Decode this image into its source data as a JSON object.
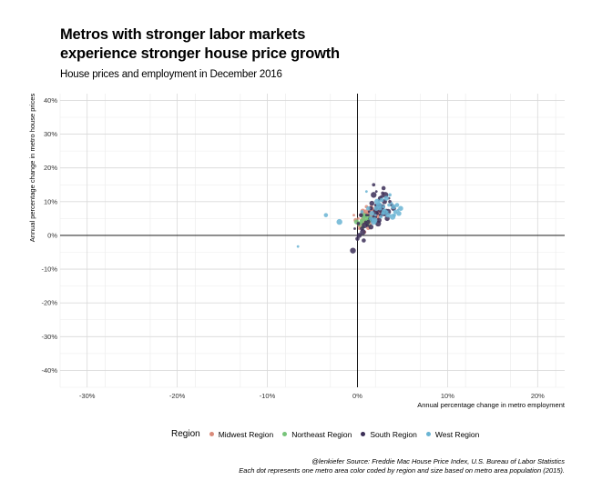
{
  "header": {
    "title_line1": "Metros with stronger labor markets",
    "title_line2": "experience stronger house price growth",
    "subtitle": "House prices and employment in December 2016"
  },
  "caption": {
    "line1": "@lenkiefer Source: Freddie Mac House Price Index, U.S. Bureau of Labor Statistics",
    "line2": "Each dot represents one metro area color coded by region and size based on metro area population (2015)."
  },
  "legend": {
    "title": "Region",
    "items": [
      {
        "label": "Midwest Region",
        "color": "#d98b7a"
      },
      {
        "label": "Northeast Region",
        "color": "#77c47a"
      },
      {
        "label": "South Region",
        "color": "#3b2e57"
      },
      {
        "label": "West Region",
        "color": "#6ab4d3"
      }
    ]
  },
  "chart_data": {
    "type": "scatter",
    "title": "Metros with stronger labor markets experience stronger house price growth",
    "subtitle": "House prices and employment in December 2016",
    "xlabel": "Annual percentage change in metro employment",
    "ylabel": "Annual percentage change in metro house prices",
    "xlim": [
      -0.33,
      0.23
    ],
    "ylim": [
      -0.45,
      0.42
    ],
    "x_ticks": [
      -0.3,
      -0.2,
      -0.1,
      0,
      0.1,
      0.2
    ],
    "x_tick_labels": [
      "-30%",
      "-20%",
      "-10%",
      "0%",
      "10%",
      "20%"
    ],
    "y_ticks": [
      -0.4,
      -0.3,
      -0.2,
      -0.1,
      0,
      0.1,
      0.2,
      0.3,
      0.4
    ],
    "y_tick_labels": [
      "-40%",
      "-30%",
      "-20%",
      "-10%",
      "0%",
      "10%",
      "20%",
      "30%",
      "40%"
    ],
    "grid": true,
    "legend_position": "bottom",
    "series": [
      {
        "name": "Midwest Region",
        "color": "#d98b7a",
        "x": [
          0.001,
          0.004,
          0.006,
          0.008,
          0.01,
          0.012,
          0.014,
          0.003,
          0.009,
          0.016,
          0.018,
          0.02,
          0.007,
          0.011,
          0.013,
          0.005,
          -0.002,
          0.015,
          0.017,
          0.022,
          0.002,
          0.019,
          0.024,
          0.01,
          0.006,
          -0.004,
          0.012,
          0.021,
          0.008,
          0.014
        ],
        "y": [
          0.05,
          0.06,
          0.045,
          0.055,
          0.07,
          0.048,
          0.058,
          0.03,
          0.065,
          0.062,
          0.052,
          0.075,
          0.04,
          0.035,
          0.068,
          0.025,
          0.045,
          0.08,
          0.055,
          0.06,
          0.02,
          0.042,
          0.07,
          0.085,
          0.072,
          0.06,
          0.022,
          0.05,
          0.01,
          0.038
        ]
      },
      {
        "name": "Northeast Region",
        "color": "#77c47a",
        "x": [
          0.002,
          0.005,
          0.008,
          0.01,
          0.012,
          0.004,
          0.006,
          0.014,
          0.009,
          0.011,
          0.016,
          0.003,
          0.007,
          0.013,
          -0.001,
          0.018
        ],
        "y": [
          0.03,
          0.04,
          0.05,
          0.035,
          0.055,
          0.045,
          0.025,
          0.048,
          0.06,
          0.042,
          0.052,
          0.036,
          0.058,
          0.03,
          0.04,
          0.046
        ]
      },
      {
        "name": "South Region",
        "color": "#3b2e57",
        "x": [
          0.01,
          0.015,
          0.02,
          0.025,
          0.03,
          0.035,
          0.012,
          0.018,
          0.022,
          0.028,
          0.032,
          0.005,
          0.008,
          0.014,
          0.016,
          0.024,
          0.026,
          0.034,
          0.038,
          0.002,
          -0.003,
          0.0,
          0.006,
          0.011,
          0.019,
          0.021,
          0.029,
          0.031,
          0.036,
          0.04,
          0.013,
          0.017,
          0.023,
          0.027,
          0.033,
          0.009,
          0.004,
          -0.005,
          0.001,
          0.015,
          0.02,
          0.025,
          0.03,
          0.018,
          0.022,
          0.012,
          0.007,
          0.026,
          0.028,
          0.024
        ],
        "y": [
          0.06,
          0.08,
          0.07,
          0.09,
          0.1,
          0.11,
          0.04,
          0.12,
          0.065,
          0.085,
          0.075,
          0.02,
          0.03,
          0.05,
          0.095,
          0.105,
          0.06,
          0.07,
          0.09,
          0.0,
          0.02,
          -0.01,
          0.01,
          0.03,
          0.055,
          0.13,
          0.14,
          0.12,
          0.1,
          0.08,
          0.07,
          0.045,
          0.035,
          0.115,
          0.05,
          0.04,
          0.06,
          -0.045,
          0.035,
          0.025,
          0.09,
          0.11,
          0.065,
          0.15,
          0.085,
          0.06,
          -0.015,
          0.075,
          0.125,
          0.045
        ]
      },
      {
        "name": "West Region",
        "color": "#6ab4d3",
        "x": [
          0.02,
          0.025,
          0.03,
          0.035,
          0.04,
          0.045,
          0.015,
          0.022,
          0.028,
          0.032,
          0.038,
          0.042,
          0.018,
          0.026,
          0.034,
          0.01,
          0.012,
          0.024,
          0.036,
          0.048,
          -0.066,
          -0.035,
          -0.02,
          0.005,
          0.016,
          0.03,
          0.044,
          0.039,
          0.029,
          0.021,
          0.033,
          0.027,
          0.019,
          0.041,
          0.046
        ],
        "y": [
          0.06,
          0.08,
          0.07,
          0.09,
          0.085,
          0.075,
          0.05,
          0.1,
          0.065,
          0.11,
          0.095,
          0.07,
          0.04,
          0.055,
          0.06,
          0.13,
          0.08,
          0.09,
          0.12,
          0.08,
          -0.033,
          0.06,
          0.04,
          0.07,
          0.065,
          0.075,
          0.09,
          0.055,
          0.085,
          0.08,
          0.07,
          0.105,
          0.045,
          0.06,
          0.065
        ]
      }
    ]
  }
}
